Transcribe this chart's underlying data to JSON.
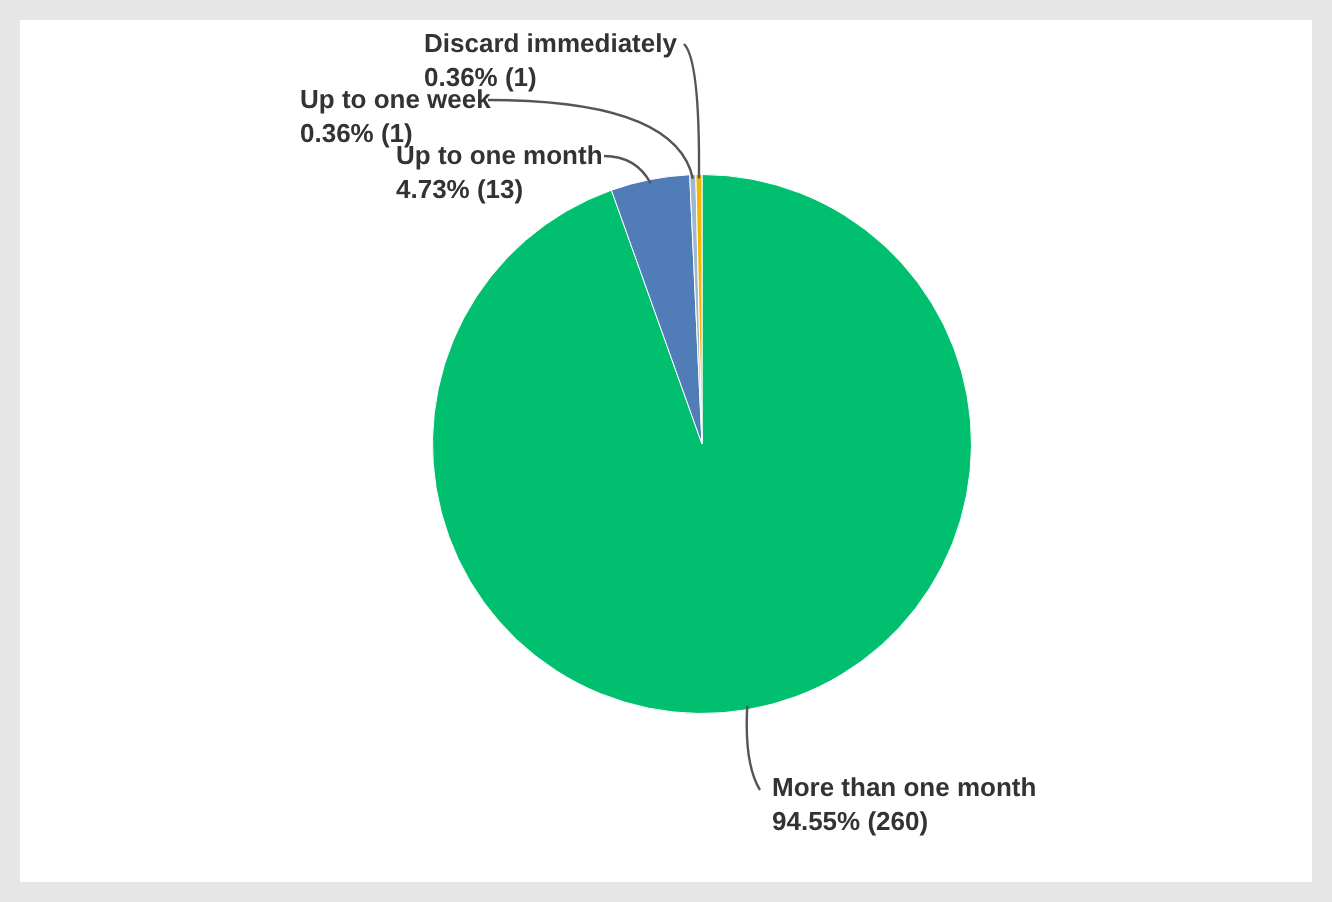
{
  "chart_data": {
    "type": "pie",
    "categories": [
      "More than one month",
      "Up to one month",
      "Up to one week",
      "Discard immediately"
    ],
    "values": [
      260,
      13,
      1,
      1
    ],
    "value_labels": [
      "94.55% (260)",
      "4.73% (13)",
      "0.36% (1)",
      "0.36% (1)"
    ],
    "colors": [
      "#00bf6f",
      "#507cb8",
      "#9fb7d6",
      "#f2b800"
    ]
  }
}
